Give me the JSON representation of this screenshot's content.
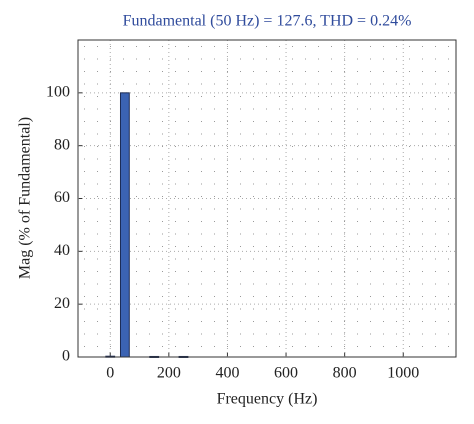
{
  "chart_data": {
    "type": "bar",
    "title": "Fundamental (50 Hz) = 127.6, THD = 0.24%",
    "x_label": "Frequency (Hz)",
    "y_label": "Mag (% of Fundamental)",
    "x": [
      0,
      50,
      150,
      250
    ],
    "values": [
      0.3,
      100,
      0.2,
      0.2
    ],
    "color": "#3b63b3",
    "xlim": [
      -110,
      1180
    ],
    "xticks": [
      0,
      200,
      400,
      600,
      800,
      1000
    ],
    "ylim": [
      0,
      120
    ],
    "yticks": [
      0,
      20,
      40,
      60,
      80,
      100
    ],
    "grid": true
  }
}
